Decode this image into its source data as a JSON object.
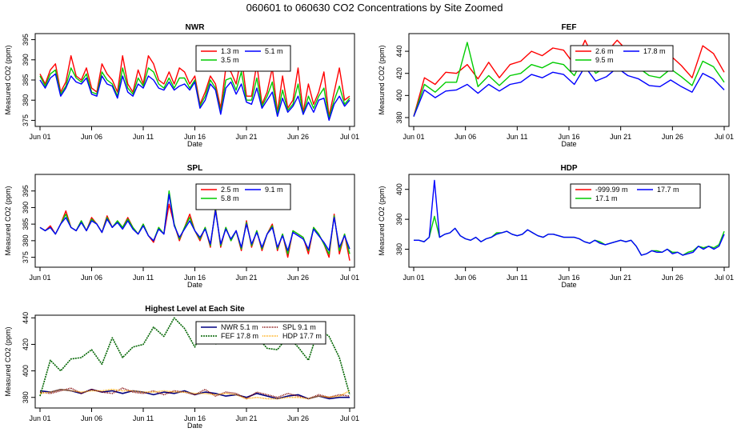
{
  "figure_title": "060601  to  060630 CO2 Concentrations by Site Zoomed",
  "chart_data": [
    {
      "type": "line",
      "title": "NWR",
      "xlabel": "Date",
      "ylabel": "Measured CO2 (ppm)",
      "xticks": [
        "Jun 01",
        "Jun 06",
        "Jun 11",
        "Jun 16",
        "Jun 21",
        "Jun 26",
        "Jul 01"
      ],
      "ylim": [
        373.5,
        396.5
      ],
      "yticks": [
        375,
        380,
        385,
        390,
        395
      ],
      "legend_position": "top-center",
      "series": [
        {
          "name": "1.3 m",
          "color": "#ff0000",
          "values": [
            386.5,
            384,
            387.5,
            389,
            382,
            384.5,
            391,
            386,
            385,
            388,
            383,
            382,
            389,
            386.5,
            385,
            382,
            391,
            384,
            382,
            387.5,
            384,
            391,
            389,
            385,
            384,
            387,
            384,
            388,
            387,
            384,
            386,
            379,
            382,
            386,
            384,
            378,
            388,
            387,
            384,
            391,
            381,
            381,
            389,
            379,
            382,
            388,
            377,
            386,
            378,
            380,
            388,
            377,
            384,
            379,
            382,
            387,
            376,
            382,
            388,
            380,
            381
          ]
        },
        {
          "name": "5.1 m",
          "color": "#0000ff",
          "values": [
            385,
            383,
            385.5,
            386.5,
            381,
            383,
            386,
            384.5,
            384,
            385.5,
            381.5,
            381,
            386,
            384,
            383.5,
            380.5,
            386,
            382,
            381,
            384,
            383,
            386,
            385,
            383,
            382.5,
            384.5,
            382.5,
            383.5,
            384,
            382.5,
            384.5,
            378,
            380,
            384,
            382.5,
            376.5,
            383,
            384.5,
            381.5,
            384,
            379.5,
            379,
            383,
            378,
            380,
            382,
            376,
            380.5,
            377,
            378.5,
            381,
            376.5,
            379.5,
            377,
            380,
            380.5,
            375,
            379,
            381,
            378.5,
            380
          ]
        },
        {
          "name": "3.5 m",
          "color": "#00cc00",
          "values": [
            386,
            383.5,
            386.5,
            387.5,
            381.5,
            383.5,
            388,
            385.5,
            384.5,
            386.5,
            382,
            381.5,
            387,
            385,
            384,
            381,
            388,
            383,
            381.5,
            385.5,
            383.5,
            388,
            387,
            384,
            383,
            385.5,
            383,
            385.5,
            385.5,
            383,
            385,
            378.5,
            381,
            385,
            383,
            377,
            385,
            385.5,
            382.5,
            387,
            380,
            380,
            385.5,
            378.5,
            381,
            384.5,
            376.5,
            382.5,
            377.5,
            379,
            384,
            376.5,
            381,
            378,
            381,
            383,
            375.5,
            380,
            383.5,
            379,
            380.5
          ]
        }
      ]
    },
    {
      "type": "line",
      "title": "FEF",
      "xlabel": "Date",
      "ylabel": "Measured CO2 (ppm)",
      "xticks": [
        "Jun 01",
        "Jun 06",
        "Jun 11",
        "Jun 16",
        "Jun 21",
        "Jun 26",
        "Jul 01"
      ],
      "ylim": [
        372,
        456
      ],
      "yticks": [
        380,
        400,
        420,
        440
      ],
      "legend_position": "top-center",
      "series": [
        {
          "name": "2.6 m",
          "color": "#ff0000",
          "values": [
            381,
            416,
            410,
            421,
            420,
            428,
            415,
            430,
            416,
            428,
            431,
            440,
            436,
            443,
            441,
            428,
            450,
            430,
            439,
            450,
            440,
            436,
            427,
            426,
            436,
            427,
            416,
            445,
            438,
            421
          ]
        },
        {
          "name": "17.8 m",
          "color": "#0000ff",
          "values": [
            381,
            405,
            398,
            404,
            405,
            410,
            402,
            410,
            404,
            410,
            412,
            419,
            416,
            421,
            419,
            410,
            426,
            413,
            417,
            425,
            418,
            415,
            409,
            408,
            414,
            408,
            403,
            420,
            415,
            405
          ]
        },
        {
          "name": "9.5 m",
          "color": "#00cc00",
          "values": [
            381,
            410,
            403,
            412,
            412,
            448,
            408,
            418,
            409,
            418,
            420,
            428,
            425,
            430,
            428,
            418,
            437,
            420,
            426,
            436,
            428,
            425,
            418,
            416,
            424,
            417,
            409,
            431,
            426,
            412
          ]
        }
      ]
    },
    {
      "type": "line",
      "title": "SPL",
      "xlabel": "Date",
      "ylabel": "Measured CO2 (ppm)",
      "xticks": [
        "Jun 01",
        "Jun 06",
        "Jun 11",
        "Jun 16",
        "Jun 21",
        "Jun 26",
        "Jul 01"
      ],
      "ylim": [
        372,
        400
      ],
      "yticks": [
        375,
        380,
        385,
        390,
        395
      ],
      "legend_position": "top-center",
      "series": [
        {
          "name": "2.5 m",
          "color": "#ff0000",
          "values": [
            384,
            383,
            384.5,
            382,
            385,
            389,
            384,
            383,
            386,
            383,
            387,
            385,
            382.5,
            387.5,
            384,
            386,
            384,
            387,
            384,
            382,
            385,
            381.5,
            379.5,
            384,
            382,
            391,
            385,
            380,
            384,
            388,
            383,
            380,
            384,
            378,
            390,
            378,
            384,
            380,
            383,
            377,
            386,
            378,
            383,
            377,
            382,
            385,
            377,
            382,
            375,
            383,
            382,
            381,
            376,
            384,
            382,
            379,
            375,
            388,
            376,
            382,
            374
          ]
        },
        {
          "name": "9.1 m",
          "color": "#0000ff",
          "values": [
            384,
            383,
            384,
            382,
            385,
            387,
            384,
            383,
            385.5,
            383,
            386,
            385,
            382.5,
            386.5,
            384,
            385.5,
            383.5,
            386,
            383.5,
            382,
            384.5,
            381.5,
            380,
            383.5,
            382,
            394,
            384.5,
            381,
            383.5,
            386,
            383,
            381,
            383.5,
            379,
            389,
            379,
            383.5,
            380.5,
            383,
            378,
            385,
            379,
            382.5,
            378,
            382,
            384,
            378,
            381.5,
            377,
            382.5,
            381.5,
            380.5,
            377.5,
            383.5,
            381.5,
            379.5,
            377,
            387,
            378,
            381.5,
            377.5
          ]
        },
        {
          "name": "5.8 m",
          "color": "#00cc00",
          "values": [
            384,
            383,
            384,
            382,
            385,
            388,
            384,
            383,
            386,
            383,
            386.5,
            385,
            382.5,
            387,
            384,
            386,
            384,
            386.5,
            384,
            382,
            385,
            381.5,
            380,
            384,
            382,
            395,
            385,
            380.5,
            384,
            387,
            383,
            380.5,
            384,
            378.5,
            389.5,
            378.5,
            384,
            380,
            383,
            377.5,
            385.5,
            378.5,
            383,
            377.5,
            382,
            384.5,
            377.5,
            382,
            376,
            383,
            382,
            381,
            377,
            384,
            382,
            379,
            376,
            387.5,
            377,
            382,
            376
          ]
        }
      ]
    },
    {
      "type": "line",
      "title": "HDP",
      "xlabel": "Date",
      "ylabel": "Measured CO2 (ppm)",
      "xticks": [
        "Jun 01",
        "Jun 06",
        "Jun 11",
        "Jun 16",
        "Jun 21",
        "Jun 26",
        "Jul 01"
      ],
      "ylim": [
        374,
        405
      ],
      "yticks": [
        380,
        390,
        400
      ],
      "legend_position": "top-right",
      "series": [
        {
          "name": "-999.99 m",
          "color": "#ff0000",
          "values": []
        },
        {
          "name": "17.7 m",
          "color": "#0000ff",
          "values": [
            383,
            383,
            382.5,
            384,
            403,
            384,
            385,
            385.5,
            387,
            384.5,
            383.5,
            383,
            384,
            382.5,
            383.5,
            384,
            385,
            385.5,
            386,
            385,
            384.5,
            385,
            386.5,
            385.5,
            384.5,
            384,
            385,
            385,
            384.5,
            384,
            384,
            384,
            383.5,
            382.5,
            382,
            383,
            382,
            381.5,
            382,
            382.5,
            383,
            382.5,
            383,
            381,
            378,
            378.5,
            379.5,
            379,
            379,
            380,
            378.5,
            379,
            378,
            378.5,
            379,
            381,
            380,
            381,
            380,
            381,
            385
          ]
        },
        {
          "name": "17.1 m",
          "color": "#00cc00",
          "values": [
            383,
            383,
            382.5,
            384,
            391,
            384,
            385,
            385.5,
            387,
            384.5,
            383.5,
            383,
            384,
            382.5,
            383.5,
            384,
            385.5,
            385.5,
            386,
            385,
            384.5,
            385,
            386.5,
            385.5,
            384.5,
            384,
            385,
            385,
            384.5,
            384,
            384,
            384,
            383.5,
            382.5,
            382,
            383,
            382.5,
            381.5,
            382,
            382.5,
            383,
            382.5,
            383,
            381,
            378,
            378.5,
            379.5,
            379.5,
            379,
            380,
            379,
            379,
            378,
            379,
            379.5,
            381,
            380.5,
            381,
            380.5,
            381.5,
            386
          ]
        }
      ]
    },
    {
      "type": "line",
      "title": "Highest Level at Each Site",
      "xlabel": "Date",
      "ylabel": "Measured CO2 (ppm)",
      "xticks": [
        "Jun 01",
        "Jun 06",
        "Jun 11",
        "Jun 16",
        "Jun 21",
        "Jun 26",
        "Jul 01"
      ],
      "ylim": [
        372,
        442
      ],
      "yticks": [
        380,
        400,
        420,
        440
      ],
      "legend_position": "top-center",
      "series": [
        {
          "name": "NWR  5.1 m",
          "color": "#000080",
          "values": [
            385,
            384,
            386,
            385,
            383,
            386,
            384,
            385,
            383,
            385,
            384,
            382,
            384,
            383,
            385,
            382,
            384,
            383,
            381,
            382,
            380,
            383,
            381,
            379,
            381,
            382,
            379,
            381,
            379,
            380,
            380
          ]
        },
        {
          "name": "FEF  17.8 m",
          "color": "#006400",
          "values": [
            381,
            408,
            400,
            409,
            410,
            416,
            405,
            425,
            410,
            418,
            420,
            433,
            426,
            440,
            432,
            418,
            436,
            420,
            427,
            435,
            426,
            426,
            417,
            416,
            426,
            418,
            408,
            432,
            426,
            410,
            382
          ]
        },
        {
          "name": "SPL  9.1 m",
          "color": "#800000",
          "values": [
            384,
            383,
            385,
            387,
            383,
            386,
            384,
            383,
            387,
            384,
            383,
            385,
            382,
            385,
            384,
            382,
            386,
            381,
            384,
            383,
            379,
            384,
            382,
            380,
            383,
            381,
            379,
            382,
            380,
            382,
            381
          ]
        },
        {
          "name": "HDP  17.7 m",
          "color": "#ffa500",
          "values": [
            383,
            384,
            386,
            385,
            384,
            385,
            385,
            386,
            385,
            385,
            384,
            384,
            385,
            384,
            384,
            383,
            383,
            382,
            383,
            382,
            379,
            380,
            379,
            379,
            380,
            380,
            379,
            381,
            380,
            381,
            385
          ]
        }
      ]
    }
  ]
}
